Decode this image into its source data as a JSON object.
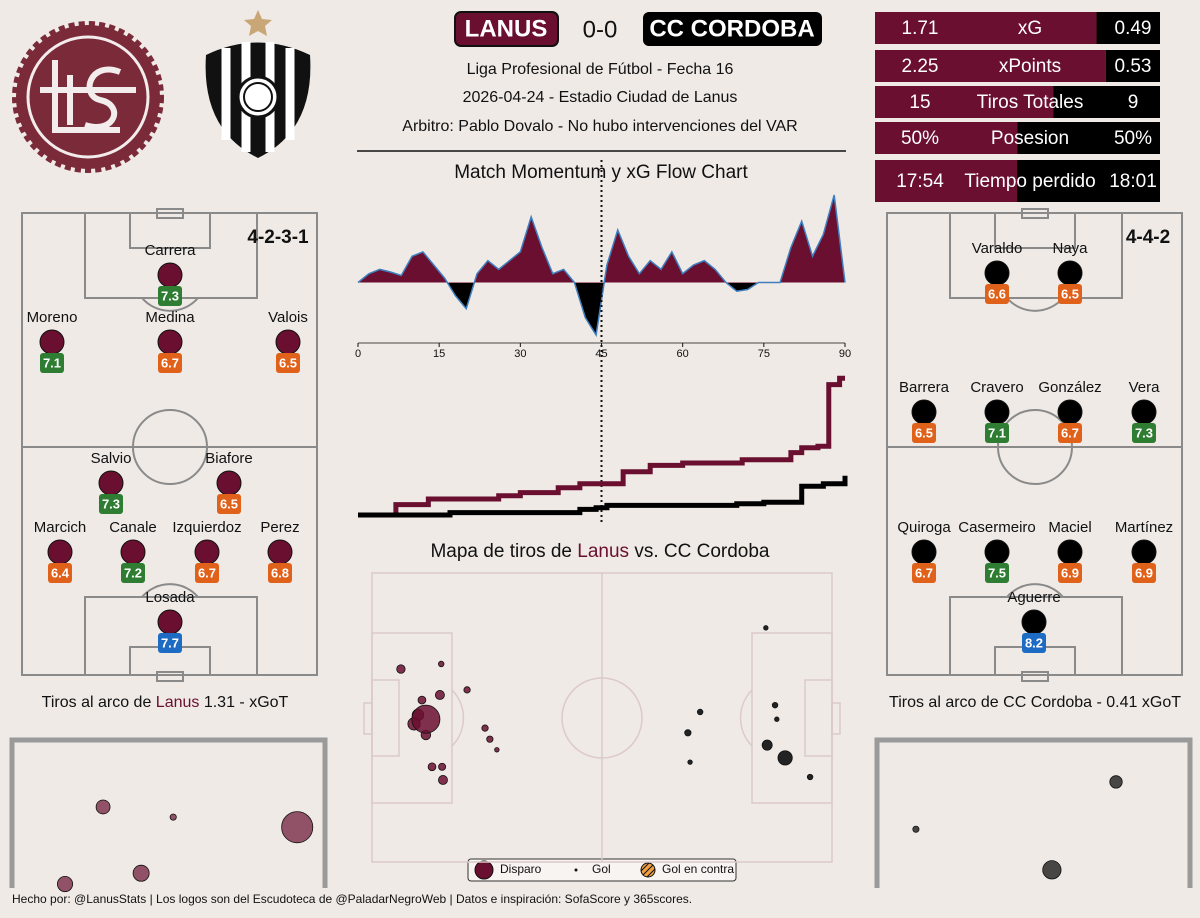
{
  "header": {
    "home": "LANUS",
    "score": "0-0",
    "away": "CC CORDOBA",
    "competition": "Liga Profesional de Fútbol - Fecha 16",
    "details": "2026-04-24 - Estadio Ciudad de Lanus",
    "referee": "Arbitro: Pablo Dovalo - No hubo intervenciones del VAR",
    "home_color": "#6a0f30",
    "away_color": "#000000"
  },
  "stats": [
    {
      "home": 1.71,
      "label": "xG",
      "away": 0.49
    },
    {
      "home": 2.25,
      "label": "xPoints",
      "away": 0.53
    },
    {
      "home": 15,
      "label": "Tiros Totales",
      "away": 9
    },
    {
      "home": {
        "value": 50,
        "label": "50%"
      },
      "label": "Posesion",
      "away": {
        "value": 50,
        "label": "50%"
      }
    },
    {
      "home": {
        "value": 1074,
        "label": "17:54"
      },
      "label": "Tiempo perdido",
      "away": {
        "value": 1081,
        "label": "18:01"
      }
    }
  ],
  "lineups": {
    "home": {
      "formation": "4-2-3-1",
      "color": "#6a0f30",
      "players": [
        {
          "name": "Carrera",
          "rating": 7.3,
          "color": "#2e7d32"
        },
        {
          "name": "Moreno",
          "rating": 7.1,
          "color": "#2e7d32"
        },
        {
          "name": "Medina",
          "rating": 6.7,
          "color": "#e0611a"
        },
        {
          "name": "Valois",
          "rating": 6.5,
          "color": "#e0611a"
        },
        {
          "name": "Salvio",
          "rating": 7.3,
          "color": "#2e7d32"
        },
        {
          "name": "Biafore",
          "rating": 6.5,
          "color": "#e0611a"
        },
        {
          "name": "Marcich",
          "rating": 6.4,
          "color": "#e0611a"
        },
        {
          "name": "Canale",
          "rating": 7.2,
          "color": "#2e7d32"
        },
        {
          "name": "Izquierdoz",
          "rating": 6.7,
          "color": "#e0611a"
        },
        {
          "name": "Perez",
          "rating": 6.8,
          "color": "#e0611a"
        },
        {
          "name": "Losada",
          "rating": 7.7,
          "color": "#1e6bc4"
        }
      ]
    },
    "away": {
      "formation": "4-4-2",
      "color": "#000000",
      "players": [
        {
          "name": "Varaldo",
          "rating": 6.6,
          "color": "#e0611a"
        },
        {
          "name": "Naya",
          "rating": 6.5,
          "color": "#e0611a"
        },
        {
          "name": "Barrera",
          "rating": 6.5,
          "color": "#e0611a"
        },
        {
          "name": "Cravero",
          "rating": 7.1,
          "color": "#2e7d32"
        },
        {
          "name": "González",
          "rating": 6.7,
          "color": "#e0611a"
        },
        {
          "name": "Vera",
          "rating": 7.3,
          "color": "#2e7d32"
        },
        {
          "name": "Quiroga",
          "rating": 6.7,
          "color": "#e0611a"
        },
        {
          "name": "Casermeiro",
          "rating": 7.5,
          "color": "#2e7d32"
        },
        {
          "name": "Maciel",
          "rating": 6.9,
          "color": "#e0611a"
        },
        {
          "name": "Martínez",
          "rating": 6.9,
          "color": "#e0611a"
        },
        {
          "name": "Aguerre",
          "rating": 8.2,
          "color": "#1e6bc4"
        }
      ]
    }
  },
  "chart_data": [
    {
      "type": "area",
      "title": "Match Momentum y xG Flow Chart",
      "x": [
        0,
        2,
        4,
        6,
        8,
        10,
        12,
        14,
        16,
        18,
        20,
        22,
        24,
        26,
        28,
        30,
        32,
        34,
        36,
        38,
        40,
        42,
        44,
        46,
        48,
        50,
        52,
        54,
        56,
        58,
        60,
        62,
        64,
        66,
        68,
        70,
        72,
        74,
        76,
        78,
        80,
        82,
        84,
        86,
        88,
        90
      ],
      "values": [
        0,
        10,
        15,
        12,
        8,
        30,
        35,
        20,
        5,
        -15,
        -30,
        10,
        25,
        15,
        25,
        35,
        75,
        40,
        10,
        15,
        0,
        -40,
        -60,
        20,
        60,
        30,
        10,
        25,
        15,
        35,
        10,
        20,
        25,
        15,
        0,
        -10,
        -8,
        0,
        0,
        0,
        40,
        70,
        30,
        55,
        100,
        0
      ],
      "xlim": [
        0,
        90
      ],
      "ylim": [
        -60,
        100
      ],
      "xticks": [
        0,
        15,
        30,
        45,
        60,
        75,
        90
      ],
      "colors": {
        "positive": "#6a0f30",
        "negative": "#000000",
        "line": "#3f7fbf"
      }
    },
    {
      "type": "step",
      "xlim": [
        0,
        90
      ],
      "ylim": [
        0,
        1.8
      ],
      "series": [
        {
          "color": "#6a0f30",
          "x": [
            7,
            13,
            26,
            30,
            37,
            41,
            49,
            54,
            60,
            71,
            80,
            82,
            85,
            87,
            89
          ],
          "values": [
            0.13,
            0.07,
            0.04,
            0.04,
            0.06,
            0.05,
            0.15,
            0.08,
            0.03,
            0.04,
            0.09,
            0.06,
            0.02,
            0.77,
            0.08
          ]
        },
        {
          "color": "#000000",
          "x": [
            17,
            41,
            44,
            46,
            70,
            75,
            82,
            86,
            90
          ],
          "values": [
            0.03,
            0.04,
            0.02,
            0.03,
            0.02,
            0.02,
            0.2,
            0.03,
            0.1
          ]
        }
      ]
    },
    {
      "type": "scatter",
      "title": [
        "Mapa de tiros de ",
        "Lanus",
        " vs. CC Cordoba"
      ],
      "xlim": [
        0,
        105
      ],
      "ylim": [
        0,
        68
      ],
      "legend": [
        "Disparo",
        "Gol",
        "Gol en contra"
      ],
      "series": [
        {
          "color": "#6a0f30",
          "x": [
            10.5,
            6.6,
            21.7,
            25.8,
            13.7,
            16.0,
            9.6,
            16.2,
            15.8,
            26.9,
            12.3,
            11.4,
            28.5,
            12.3,
            15.5
          ],
          "values": [
            33.4,
            22.6,
            27.5,
            36.5,
            45.6,
            45.6,
            35.5,
            48.7,
            21.4,
            39.1,
            38.1,
            29.9,
            41.6,
            34.4,
            28.7
          ],
          "sizes": [
            0.13,
            0.07,
            0.04,
            0.04,
            0.06,
            0.05,
            0.15,
            0.08,
            0.03,
            0.04,
            0.09,
            0.06,
            0.02,
            0.77,
            0.08
          ]
        },
        {
          "color": "#000000",
          "x": [
            74.9,
            72.1,
            72.6,
            92.0,
            89.9,
            92.4,
            94.3,
            100.0,
            90.2
          ],
          "values": [
            32.7,
            37.6,
            44.5,
            31.1,
            12.9,
            34.4,
            43.5,
            48.0,
            40.5
          ],
          "sizes": [
            0.03,
            0.04,
            0.02,
            0.03,
            0.02,
            0.02,
            0.2,
            0.03,
            0.1
          ]
        }
      ]
    },
    {
      "type": "goal",
      "title": [
        "Tiros al arco de ",
        "Lanus",
        " 1.31 - xGoT"
      ],
      "color": "#6a0f30",
      "xlim": [
        0,
        7.32
      ],
      "ylim": [
        0,
        2.44
      ],
      "x": [
        2.13,
        3.77,
        6.67,
        3.02,
        1.24
      ],
      "values": [
        1.45,
        1.3,
        1.15,
        0.47,
        0.31
      ],
      "sizes": [
        0.15,
        0.03,
        0.75,
        0.2,
        0.18
      ]
    },
    {
      "type": "goal",
      "title": [
        "Tiros al arco de CC Cordoba - 0.41 xGoT"
      ],
      "color": "#000000",
      "xlim": [
        0,
        7.32
      ],
      "ylim": [
        0,
        2.44
      ],
      "x": [
        5.59,
        0.91,
        4.09
      ],
      "values": [
        1.82,
        1.12,
        0.52
      ],
      "sizes": [
        0.12,
        0.03,
        0.26
      ]
    }
  ],
  "footer": "Hecho por: @LanusStats | Los logos son del Escudoteca de @PaladarNegroWeb | Datos e inspiración: SofaScore y 365scores."
}
